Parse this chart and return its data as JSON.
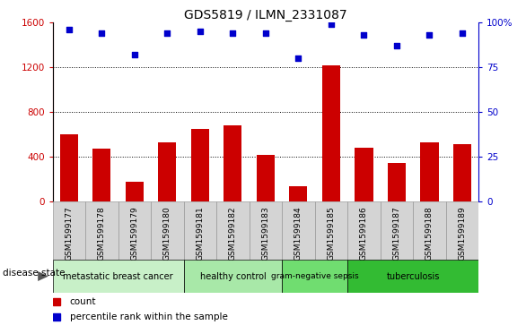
{
  "title": "GDS5819 / ILMN_2331087",
  "samples": [
    "GSM1599177",
    "GSM1599178",
    "GSM1599179",
    "GSM1599180",
    "GSM1599181",
    "GSM1599182",
    "GSM1599183",
    "GSM1599184",
    "GSM1599185",
    "GSM1599186",
    "GSM1599187",
    "GSM1599188",
    "GSM1599189"
  ],
  "counts": [
    600,
    470,
    175,
    530,
    650,
    680,
    420,
    140,
    1220,
    480,
    345,
    530,
    510
  ],
  "percentiles": [
    96,
    94,
    82,
    94,
    95,
    94,
    94,
    80,
    99,
    93,
    87,
    93,
    94
  ],
  "bar_color": "#cc0000",
  "dot_color": "#0000cc",
  "ylim_left": [
    0,
    1600
  ],
  "ylim_right": [
    0,
    100
  ],
  "yticks_left": [
    0,
    400,
    800,
    1200,
    1600
  ],
  "yticks_right": [
    0,
    25,
    50,
    75,
    100
  ],
  "yticklabels_right": [
    "0",
    "25",
    "50",
    "75",
    "100%"
  ],
  "grid_values": [
    400,
    800,
    1200
  ],
  "disease_groups": [
    {
      "label": "metastatic breast cancer",
      "indices": [
        0,
        1,
        2,
        3
      ],
      "color": "#c8f0c8"
    },
    {
      "label": "healthy control",
      "indices": [
        4,
        5,
        6
      ],
      "color": "#a8e8a8"
    },
    {
      "label": "gram-negative sepsis",
      "indices": [
        7,
        8
      ],
      "color": "#70dd70"
    },
    {
      "label": "tuberculosis",
      "indices": [
        9,
        10,
        11,
        12
      ],
      "color": "#33bb33"
    }
  ],
  "disease_state_label": "disease state",
  "legend_count_label": "count",
  "legend_percentile_label": "percentile rank within the sample",
  "bar_width": 0.55,
  "tick_label_bg": "#d4d4d4",
  "tick_label_line_color": "#888888"
}
